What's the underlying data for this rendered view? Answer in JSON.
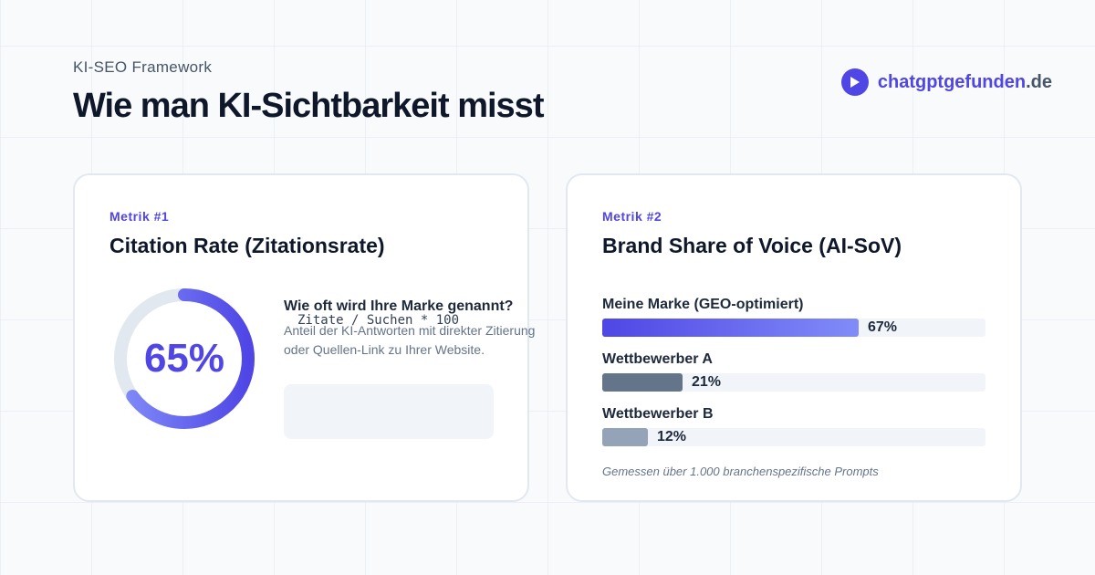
{
  "header": {
    "eyebrow": "KI-SEO Framework",
    "title": "Wie man KI-Sichtbarkeit misst",
    "brand_name": "chatgptgefunden",
    "brand_tld": ".de",
    "brand_icon": "play-icon"
  },
  "colors": {
    "accent": "#4f46e5",
    "competitor_a": "#64748b",
    "competitor_b": "#94a3b8",
    "track": "#f1f5f9",
    "donut_track": "#e2e8f0"
  },
  "metric1": {
    "label": "Metrik #1",
    "title": "Citation Rate (Zitationsrate)",
    "percent_label": "65%",
    "percent_value": 65,
    "question": "Wie oft wird Ihre Marke genannt?",
    "description": "Anteil der KI-Antworten mit direkter Zitierung oder Quellen-Link zu Ihrer Website.",
    "formula": "Zitate / Suchen * 100"
  },
  "metric2": {
    "label": "Metrik #2",
    "title": "Brand Share of Voice (AI-SoV)",
    "bars": [
      {
        "label": "Meine Marke (GEO-optimiert)",
        "value_label": "67%",
        "value": 67
      },
      {
        "label": "Wettbewerber A",
        "value_label": "21%",
        "value": 21
      },
      {
        "label": "Wettbewerber B",
        "value_label": "12%",
        "value": 12
      }
    ],
    "footnote": "Gemessen über 1.000 branchenspezifische Prompts"
  }
}
